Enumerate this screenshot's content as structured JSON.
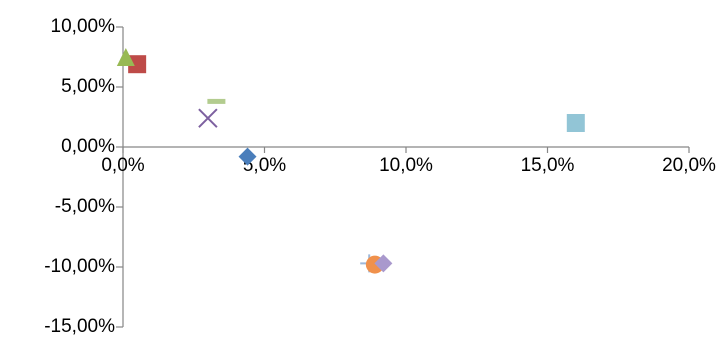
{
  "chart_data": {
    "type": "scatter",
    "title": "",
    "xlabel": "",
    "ylabel": "",
    "xlim": [
      0,
      0.2
    ],
    "ylim": [
      -0.15,
      0.1
    ],
    "x_ticks": [
      0.0,
      0.05,
      0.1,
      0.15,
      0.2
    ],
    "y_ticks": [
      0.1,
      0.05,
      0.0,
      -0.05,
      -0.1,
      -0.15
    ],
    "x_tick_labels": [
      "0,0%",
      "5,0%",
      "10,0%",
      "15,0%",
      "20,0%"
    ],
    "y_tick_labels": [
      "10,00%",
      "5,00%",
      "0,00%",
      "-5,00%",
      "-10,00%",
      "-15,00%"
    ],
    "grid": false,
    "legend": "none",
    "series": [
      {
        "marker": "diamond",
        "color": "#4a7ebb",
        "points": [
          {
            "x": 0.044,
            "y": -0.008
          }
        ]
      },
      {
        "marker": "square",
        "color": "#be4b48",
        "points": [
          {
            "x": 0.005,
            "y": 0.069
          }
        ]
      },
      {
        "marker": "triangle",
        "color": "#98b954",
        "points": [
          {
            "x": 0.001,
            "y": 0.075
          }
        ]
      },
      {
        "marker": "x",
        "color": "#7d60a0",
        "points": [
          {
            "x": 0.03,
            "y": 0.024
          }
        ]
      },
      {
        "marker": "dash",
        "color": "#b3cc8f",
        "points": [
          {
            "x": 0.033,
            "y": 0.038
          }
        ]
      },
      {
        "marker": "square",
        "color": "#92c5d6",
        "points": [
          {
            "x": 0.16,
            "y": 0.02
          }
        ]
      },
      {
        "marker": "plus",
        "color": "#9eb8d9",
        "points": [
          {
            "x": 0.087,
            "y": -0.097
          }
        ]
      },
      {
        "marker": "circle",
        "color": "#f0914c",
        "points": [
          {
            "x": 0.089,
            "y": -0.098
          }
        ]
      },
      {
        "marker": "diamond",
        "color": "#a999cd",
        "points": [
          {
            "x": 0.092,
            "y": -0.097
          }
        ]
      }
    ]
  }
}
